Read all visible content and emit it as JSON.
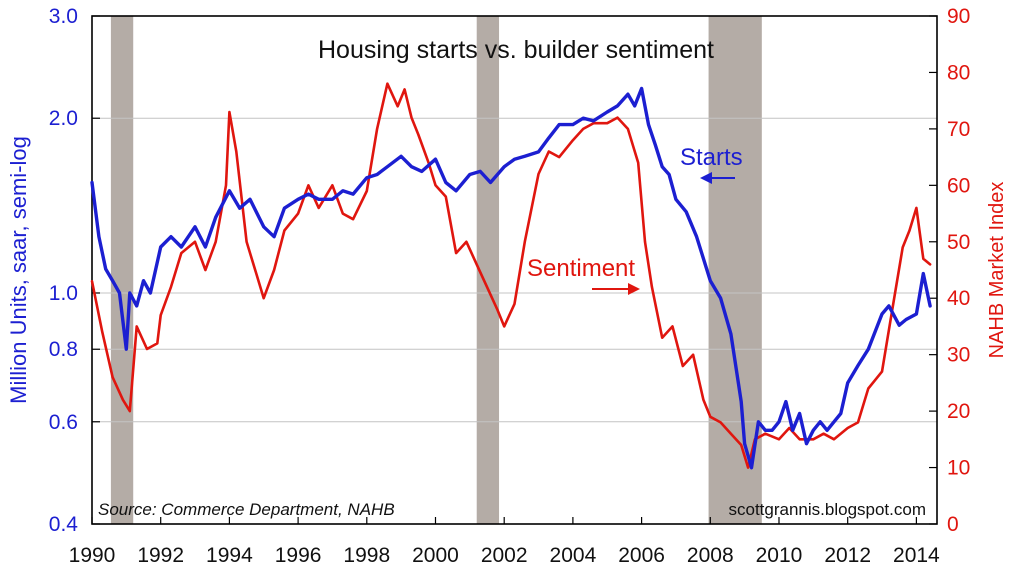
{
  "chart_data": {
    "type": "line",
    "title": "Housing starts vs. builder sentiment",
    "left_axis": {
      "label": "Million Units, saar, semi-log",
      "scale": "log",
      "range": [
        0.4,
        3.0
      ],
      "ticks": [
        {
          "value": 0.4,
          "label": "0.4"
        },
        {
          "value": 0.6,
          "label": "0.6"
        },
        {
          "value": 0.8,
          "label": "0.8"
        },
        {
          "value": 1.0,
          "label": "1.0"
        },
        {
          "value": 2.0,
          "label": "2.0"
        },
        {
          "value": 3.0,
          "label": "3.0"
        }
      ]
    },
    "right_axis": {
      "label": "NAHB Market Index",
      "range": [
        0,
        90
      ],
      "ticks": [
        "0",
        "10",
        "20",
        "30",
        "40",
        "50",
        "60",
        "70",
        "80",
        "90"
      ]
    },
    "x_axis": {
      "range": [
        1990.0,
        2014.6
      ],
      "ticks": [
        "1990",
        "1992",
        "1994",
        "1996",
        "1998",
        "2000",
        "2002",
        "2004",
        "2006",
        "2008",
        "2010",
        "2012",
        "2014"
      ]
    },
    "recessions": [
      [
        1990.55,
        1991.2
      ],
      [
        2001.2,
        2001.85
      ],
      [
        2007.95,
        2009.5
      ]
    ],
    "series": [
      {
        "name": "Starts",
        "axis": "left",
        "color": "#1c1fd1",
        "x": [
          1990.0,
          1990.2,
          1990.4,
          1990.6,
          1990.8,
          1991.0,
          1991.1,
          1991.3,
          1991.5,
          1991.7,
          1992.0,
          1992.3,
          1992.6,
          1993.0,
          1993.3,
          1993.6,
          1994.0,
          1994.3,
          1994.6,
          1995.0,
          1995.3,
          1995.6,
          1996.0,
          1996.3,
          1996.6,
          1997.0,
          1997.3,
          1997.6,
          1998.0,
          1998.3,
          1998.6,
          1999.0,
          1999.3,
          1999.6,
          2000.0,
          2000.3,
          2000.6,
          2001.0,
          2001.3,
          2001.6,
          2002.0,
          2002.3,
          2002.6,
          2003.0,
          2003.3,
          2003.6,
          2004.0,
          2004.3,
          2004.6,
          2005.0,
          2005.3,
          2005.6,
          2005.8,
          2006.0,
          2006.2,
          2006.4,
          2006.6,
          2006.8,
          2007.0,
          2007.3,
          2007.6,
          2008.0,
          2008.3,
          2008.6,
          2008.9,
          2009.0,
          2009.2,
          2009.4,
          2009.6,
          2009.8,
          2010.0,
          2010.2,
          2010.4,
          2010.6,
          2010.8,
          2011.0,
          2011.2,
          2011.4,
          2011.6,
          2011.8,
          2012.0,
          2012.3,
          2012.6,
          2013.0,
          2013.2,
          2013.5,
          2013.7,
          2014.0,
          2014.2,
          2014.4
        ],
        "values": [
          1.55,
          1.25,
          1.1,
          1.05,
          1.0,
          0.8,
          1.0,
          0.95,
          1.05,
          1.0,
          1.2,
          1.25,
          1.2,
          1.3,
          1.2,
          1.35,
          1.5,
          1.4,
          1.45,
          1.3,
          1.25,
          1.4,
          1.45,
          1.48,
          1.45,
          1.45,
          1.5,
          1.48,
          1.58,
          1.6,
          1.65,
          1.72,
          1.65,
          1.62,
          1.7,
          1.55,
          1.5,
          1.6,
          1.62,
          1.55,
          1.65,
          1.7,
          1.72,
          1.75,
          1.85,
          1.95,
          1.95,
          2.0,
          1.98,
          2.05,
          2.1,
          2.2,
          2.1,
          2.25,
          1.95,
          1.8,
          1.65,
          1.6,
          1.45,
          1.38,
          1.25,
          1.05,
          0.98,
          0.85,
          0.65,
          0.55,
          0.5,
          0.6,
          0.58,
          0.58,
          0.6,
          0.65,
          0.58,
          0.62,
          0.55,
          0.58,
          0.6,
          0.58,
          0.6,
          0.62,
          0.7,
          0.75,
          0.8,
          0.92,
          0.95,
          0.88,
          0.9,
          0.92,
          1.08,
          0.95
        ]
      },
      {
        "name": "Sentiment",
        "axis": "right",
        "color": "#e0160f",
        "x": [
          1990.0,
          1990.3,
          1990.6,
          1990.9,
          1991.1,
          1991.3,
          1991.6,
          1991.9,
          1992.0,
          1992.3,
          1992.6,
          1993.0,
          1993.3,
          1993.6,
          1993.9,
          1994.0,
          1994.2,
          1994.5,
          1994.8,
          1995.0,
          1995.3,
          1995.6,
          1996.0,
          1996.3,
          1996.6,
          1997.0,
          1997.3,
          1997.6,
          1998.0,
          1998.3,
          1998.6,
          1998.9,
          1999.1,
          1999.3,
          1999.5,
          1999.8,
          2000.0,
          2000.3,
          2000.6,
          2000.9,
          2001.2,
          2001.5,
          2001.8,
          2002.0,
          2002.3,
          2002.6,
          2003.0,
          2003.3,
          2003.6,
          2004.0,
          2004.3,
          2004.6,
          2005.0,
          2005.3,
          2005.6,
          2005.9,
          2006.1,
          2006.3,
          2006.6,
          2006.9,
          2007.2,
          2007.5,
          2007.8,
          2008.0,
          2008.3,
          2008.6,
          2008.9,
          2009.1,
          2009.3,
          2009.6,
          2010.0,
          2010.3,
          2010.6,
          2011.0,
          2011.3,
          2011.6,
          2012.0,
          2012.3,
          2012.6,
          2013.0,
          2013.3,
          2013.6,
          2013.8,
          2014.0,
          2014.2,
          2014.4
        ],
        "values": [
          43,
          34,
          26,
          22,
          20,
          35,
          31,
          32,
          37,
          42,
          48,
          50,
          45,
          50,
          60,
          73,
          66,
          50,
          44,
          40,
          45,
          52,
          55,
          60,
          56,
          60,
          55,
          54,
          59,
          70,
          78,
          74,
          77,
          72,
          69,
          64,
          60,
          58,
          48,
          50,
          46,
          42,
          38,
          35,
          39,
          50,
          62,
          66,
          65,
          68,
          70,
          71,
          71,
          72,
          70,
          64,
          50,
          42,
          33,
          35,
          28,
          30,
          22,
          19,
          18,
          16,
          14,
          10,
          15,
          16,
          15,
          17,
          15,
          15,
          16,
          15,
          17,
          18,
          24,
          27,
          38,
          49,
          52,
          56,
          47,
          46
        ]
      }
    ],
    "annotations": [
      {
        "text": "Starts",
        "target": "Starts"
      },
      {
        "text": "Sentiment",
        "target": "Sentiment"
      }
    ],
    "source_note": "Source:  Commerce Department, NAHB",
    "credit": "scottgrannis.blogspot.com"
  }
}
